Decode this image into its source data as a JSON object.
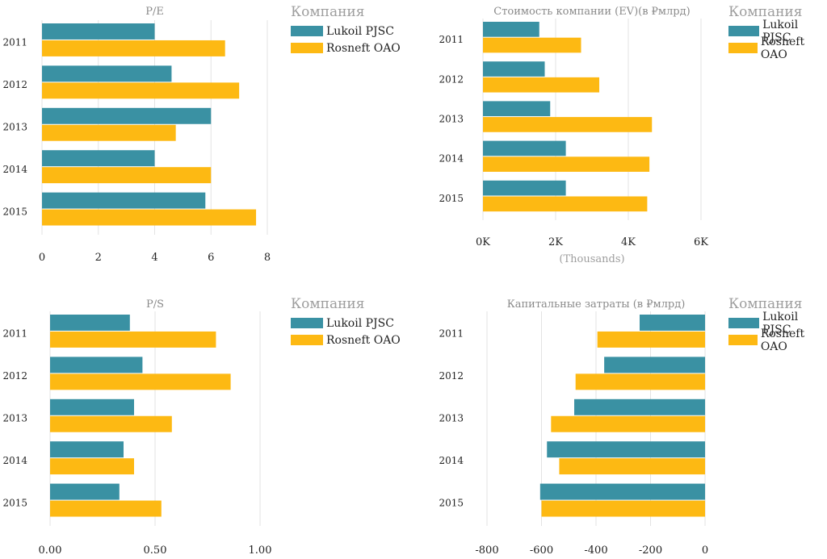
{
  "colors": {
    "Lukoil PJSC": "#3a91a3",
    "Rosneft OAO": "#fdb913"
  },
  "legend": {
    "title": "Компания",
    "items": [
      "Lukoil PJSC",
      "Rosneft OAO"
    ]
  },
  "chart_data": [
    {
      "type": "bar",
      "orientation": "horizontal",
      "title": "P/E",
      "categories": [
        "2011",
        "2012",
        "2013",
        "2014",
        "2015"
      ],
      "series": [
        {
          "name": "Lukoil PJSC",
          "values": [
            4.0,
            4.6,
            6.0,
            4.0,
            5.8
          ]
        },
        {
          "name": "Rosneft OAO",
          "values": [
            6.5,
            7.0,
            4.75,
            6.0,
            7.6
          ]
        }
      ],
      "xlim": [
        0,
        8
      ],
      "xticks": [
        "0",
        "2",
        "4",
        "6",
        "8"
      ],
      "xlabel": "",
      "ylabel": "",
      "grid": true
    },
    {
      "type": "bar",
      "orientation": "horizontal",
      "title": "Стоимость компании (EV)(в ₽млрд)",
      "categories": [
        "2011",
        "2012",
        "2013",
        "2014",
        "2015"
      ],
      "series": [
        {
          "name": "Lukoil PJSC",
          "values": [
            1550,
            1700,
            1850,
            2280,
            2280
          ]
        },
        {
          "name": "Rosneft OAO",
          "values": [
            2700,
            3200,
            4650,
            4580,
            4520
          ]
        }
      ],
      "xlim": [
        0,
        6000
      ],
      "xticks": [
        "0K",
        "2K",
        "4K",
        "6K"
      ],
      "xlabel": "(Thousands)",
      "ylabel": "",
      "grid": true
    },
    {
      "type": "bar",
      "orientation": "horizontal",
      "title": "P/S",
      "categories": [
        "2011",
        "2012",
        "2013",
        "2014",
        "2015"
      ],
      "series": [
        {
          "name": "Lukoil PJSC",
          "values": [
            0.38,
            0.44,
            0.4,
            0.35,
            0.33
          ]
        },
        {
          "name": "Rosneft OAO",
          "values": [
            0.79,
            0.86,
            0.58,
            0.4,
            0.53
          ]
        }
      ],
      "xlim": [
        0,
        1.0
      ],
      "xticks": [
        "0.00",
        "0.50",
        "1.00"
      ],
      "xlabel": "",
      "ylabel": "",
      "grid": true
    },
    {
      "type": "bar",
      "orientation": "horizontal",
      "title": "Капитальные затраты (в ₽млрд)",
      "categories": [
        "2011",
        "2012",
        "2013",
        "2014",
        "2015"
      ],
      "series": [
        {
          "name": "Lukoil PJSC",
          "values": [
            -240,
            -370,
            -480,
            -580,
            -605
          ]
        },
        {
          "name": "Rosneft OAO",
          "values": [
            -395,
            -475,
            -565,
            -535,
            -600
          ]
        }
      ],
      "xlim": [
        -800,
        0
      ],
      "xticks": [
        "-800",
        "-600",
        "-400",
        "-200",
        "0"
      ],
      "xlabel": "",
      "ylabel": "",
      "grid": true
    }
  ]
}
